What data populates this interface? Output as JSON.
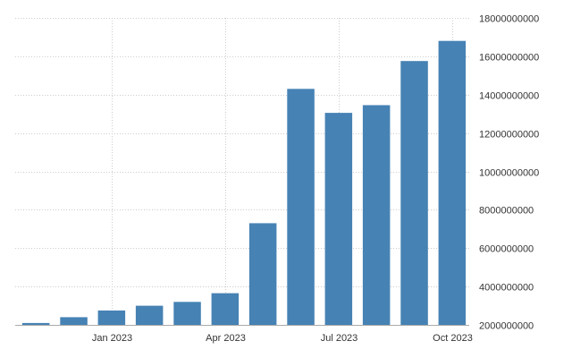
{
  "chart_data": {
    "type": "bar",
    "categories": [
      "Nov 2022",
      "Dec 2022",
      "Jan 2023",
      "Feb 2023",
      "Mar 2023",
      "Apr 2023",
      "May 2023",
      "Jun 2023",
      "Jul 2023",
      "Aug 2023",
      "Sep 2023",
      "Oct 2023"
    ],
    "values": [
      2100000000,
      2400000000,
      2750000000,
      3000000000,
      3200000000,
      3650000000,
      7300000000,
      14300000000,
      13050000000,
      13450000000,
      15750000000,
      16800000000
    ],
    "x_tick_labels": [
      {
        "category": "Jan 2023",
        "label": "Jan 2023"
      },
      {
        "category": "Apr 2023",
        "label": "Apr 2023"
      },
      {
        "category": "Jul 2023",
        "label": "Jul 2023"
      },
      {
        "category": "Oct 2023",
        "label": "Oct 2023"
      }
    ],
    "y_ticks": [
      2000000000,
      4000000000,
      6000000000,
      8000000000,
      10000000000,
      12000000000,
      14000000000,
      16000000000,
      18000000000
    ],
    "y_tick_labels": [
      "2000000000",
      "4000000000",
      "6000000000",
      "8000000000",
      "10000000000",
      "12000000000",
      "14000000000",
      "16000000000",
      "18000000000"
    ],
    "ylim": [
      2000000000,
      18000000000
    ],
    "yaxis_position": "right",
    "grid": true,
    "bar_color": "#4682b4",
    "title": "",
    "xlabel": "",
    "ylabel": ""
  }
}
